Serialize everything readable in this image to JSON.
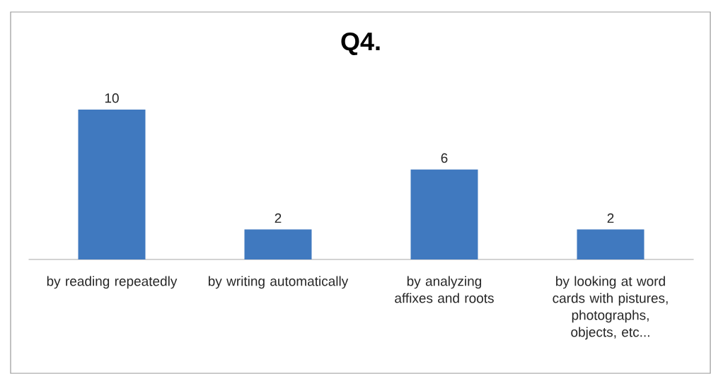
{
  "chart_data": {
    "type": "bar",
    "title": "Q4.",
    "categories": [
      "by reading repeatedly",
      "by writing automatically",
      "by analyzing affixes and roots",
      "by looking at word cards with pistures, photographs, objects, etc..."
    ],
    "values": [
      10,
      2,
      6,
      2
    ],
    "color": "#4079bf",
    "data_labels": true
  }
}
